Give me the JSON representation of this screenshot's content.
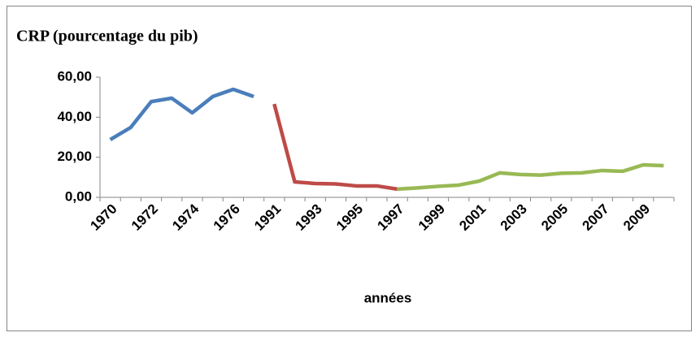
{
  "chart_data": {
    "type": "line",
    "title": "CRP (pourcentage du pib)",
    "x_label": "années",
    "categories": [
      "1970",
      null,
      "1972",
      null,
      "1974",
      null,
      "1976",
      null,
      "1991",
      null,
      "1993",
      null,
      "1995",
      null,
      "1997",
      null,
      "1999",
      null,
      "2001",
      null,
      "2003",
      null,
      "2005",
      null,
      "2007",
      null,
      "2009",
      null
    ],
    "series": [
      {
        "color": "#4a7ebb",
        "values": [
          28.8,
          34.9,
          47.8,
          49.5,
          42.2,
          50.3,
          53.9,
          50.3,
          null,
          null,
          null,
          null,
          null,
          null,
          null,
          null,
          null,
          null,
          null,
          null,
          null,
          null,
          null,
          null,
          null,
          null,
          null,
          null
        ]
      },
      {
        "color": "#be4b48",
        "values": [
          null,
          null,
          null,
          null,
          null,
          null,
          null,
          null,
          46.6,
          7.7,
          6.9,
          6.7,
          5.7,
          5.7,
          4.1,
          null,
          null,
          null,
          null,
          null,
          null,
          null,
          null,
          null,
          null,
          null,
          null,
          null
        ]
      },
      {
        "color": "#98b954",
        "values": [
          null,
          null,
          null,
          null,
          null,
          null,
          null,
          null,
          null,
          null,
          null,
          null,
          null,
          null,
          4.1,
          4.7,
          5.5,
          6.1,
          8.1,
          12.2,
          11.4,
          11.1,
          12.0,
          12.2,
          13.4,
          13.0,
          16.2,
          15.8
        ]
      }
    ],
    "ylim": [
      0,
      60
    ],
    "yticks": [
      {
        "value": 0,
        "label": "0,00"
      },
      {
        "value": 20,
        "label": "20,00"
      },
      {
        "value": 40,
        "label": "40,00"
      },
      {
        "value": 60,
        "label": "60,00"
      }
    ],
    "grid": false
  }
}
